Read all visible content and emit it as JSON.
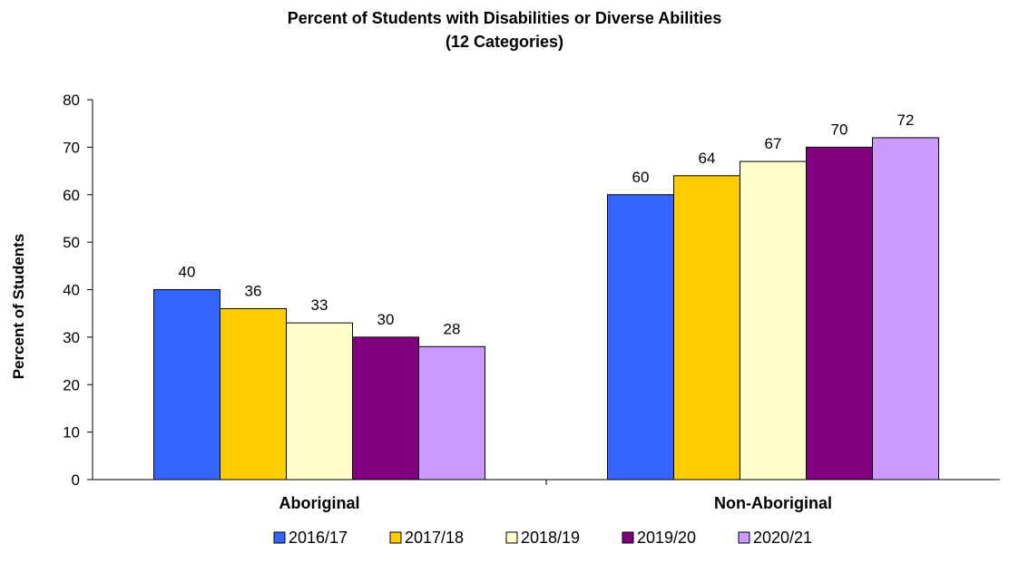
{
  "chart_data": {
    "type": "bar",
    "title": "Percent of Students with Disabilities or Diverse Abilities",
    "subtitle": "(12 Categories)",
    "xlabel": "",
    "ylabel": "Percent of Students",
    "ylim": [
      0,
      80
    ],
    "yticks": [
      0,
      10,
      20,
      30,
      40,
      50,
      60,
      70,
      80
    ],
    "categories": [
      "Aboriginal",
      "Non-Aboriginal"
    ],
    "series": [
      {
        "name": "2016/17",
        "color": "#3366ff",
        "values": [
          40,
          60
        ],
        "labels": [
          "40",
          "60"
        ]
      },
      {
        "name": "2017/18",
        "color": "#ffcc00",
        "values": [
          36,
          64
        ],
        "labels": [
          "36",
          "64"
        ]
      },
      {
        "name": "2018/19",
        "color": "#ffffcc",
        "values": [
          33,
          67
        ],
        "labels": [
          "33",
          "67"
        ]
      },
      {
        "name": "2019/20",
        "color": "#800080",
        "values": [
          30,
          70
        ],
        "labels": [
          "30",
          "70"
        ]
      },
      {
        "name": "2020/21",
        "color": "#cc99ff",
        "values": [
          28,
          72
        ],
        "labels": [
          "28",
          "72"
        ]
      }
    ],
    "grid": false,
    "legend_position": "bottom"
  }
}
